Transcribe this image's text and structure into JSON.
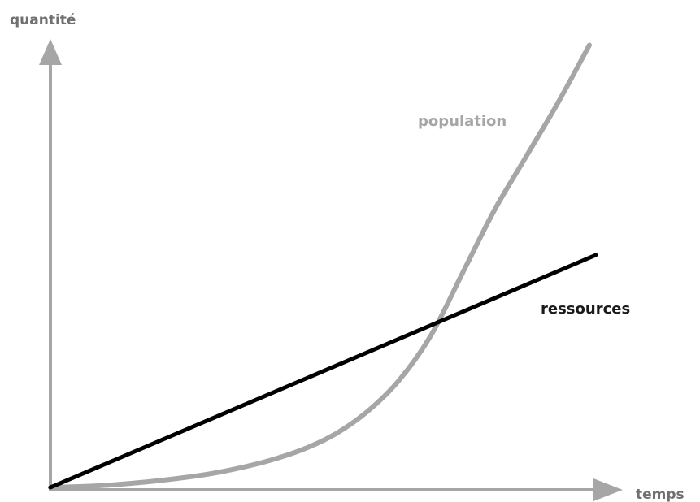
{
  "chart_data": {
    "type": "line",
    "title": "",
    "xlabel": "temps",
    "ylabel": "quantité",
    "xlim": [
      0,
      10
    ],
    "ylim": [
      0,
      10
    ],
    "grid": false,
    "legend": "none",
    "series": [
      {
        "name": "population",
        "color": "#a6a6a6",
        "points": [
          [
            0,
            0.0
          ],
          [
            0.5,
            0.02
          ],
          [
            1.0,
            0.06
          ],
          [
            1.5,
            0.12
          ],
          [
            2.0,
            0.2
          ],
          [
            2.5,
            0.3
          ],
          [
            3.0,
            0.44
          ],
          [
            3.5,
            0.62
          ],
          [
            4.0,
            0.86
          ],
          [
            4.5,
            1.2
          ],
          [
            5.0,
            1.7
          ],
          [
            5.5,
            2.4
          ],
          [
            6.0,
            3.4
          ],
          [
            6.5,
            4.8
          ],
          [
            7.0,
            6.2
          ],
          [
            7.5,
            7.4
          ],
          [
            8.0,
            8.6
          ],
          [
            8.5,
            9.9
          ]
        ]
      },
      {
        "name": "ressources",
        "color": "#000000",
        "points": [
          [
            0,
            0.0
          ],
          [
            8.6,
            5.2
          ]
        ]
      }
    ]
  }
}
